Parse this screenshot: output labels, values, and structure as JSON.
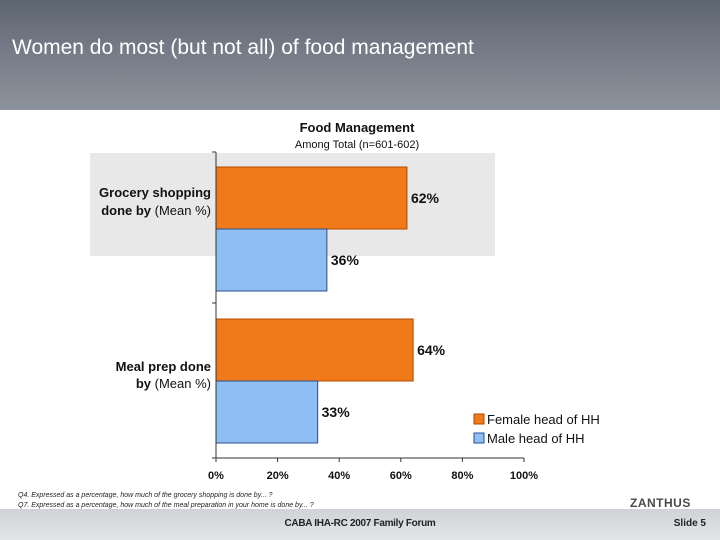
{
  "slide": {
    "title": "Women do most (but not all) of food management",
    "footnotes": [
      "Q4. Expressed as a percentage, how much of the grocery shopping is done by... ?",
      "Q7. Expressed as a percentage, how much of the meal preparation in your home is done by... ?"
    ],
    "logo": "ZANTHUS",
    "footer": "CABA IHA-RC 2007 Family Forum",
    "slide_number": "Slide 5"
  },
  "colors": {
    "female": "#f07a1a",
    "male": "#8fbef5",
    "highlight": "#e8e8e8",
    "header": "#6b717c"
  },
  "chart_data": {
    "type": "bar",
    "orientation": "horizontal",
    "title": "Food Management",
    "subtitle": "Among Total (n=601-602)",
    "categories": [
      {
        "line1": "Grocery shopping",
        "line2_bold": "done by",
        "line2_rest": " (Mean %)"
      },
      {
        "line1": "Meal prep done",
        "line2_bold": "by",
        "line2_rest": " (Mean %)"
      }
    ],
    "series": [
      {
        "name": "Female head of HH",
        "values": [
          62,
          64
        ],
        "labels": [
          "62%",
          "64%"
        ]
      },
      {
        "name": "Male head of HH",
        "values": [
          36,
          33
        ],
        "labels": [
          "36%",
          "33%"
        ]
      }
    ],
    "xlim": [
      0,
      100
    ],
    "ticks": [
      "0%",
      "20%",
      "40%",
      "60%",
      "80%",
      "100%"
    ],
    "highlighted_category": 0,
    "legend_position": "bottom-right",
    "grid": false
  }
}
